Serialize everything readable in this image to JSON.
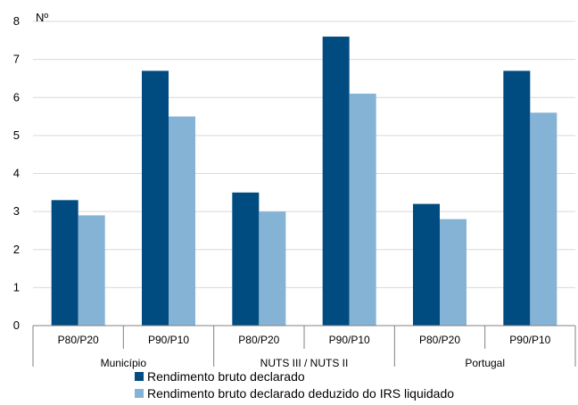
{
  "chart_data": {
    "type": "bar",
    "ylabel": "Nº",
    "ylim": [
      0,
      8
    ],
    "yticks": [
      0,
      1,
      2,
      3,
      4,
      5,
      6,
      7,
      8
    ],
    "grid": true,
    "legend_position": "bottom",
    "groups": [
      {
        "label": "Município",
        "categories": [
          "P80/P20",
          "P90/P10"
        ]
      },
      {
        "label": "NUTS III / NUTS II",
        "categories": [
          "P80/P20",
          "P90/P10"
        ]
      },
      {
        "label": "Portugal",
        "categories": [
          "P80/P20",
          "P90/P10"
        ]
      }
    ],
    "series": [
      {
        "name": "Rendimento bruto declarado",
        "color": "#004b80",
        "values": [
          3.3,
          6.7,
          3.5,
          7.6,
          3.2,
          6.7
        ]
      },
      {
        "name": "Rendimento bruto declarado deduzido do IRS liquidado",
        "color": "#85b3d6",
        "values": [
          2.9,
          5.5,
          3.0,
          6.1,
          2.8,
          5.6
        ]
      }
    ]
  }
}
